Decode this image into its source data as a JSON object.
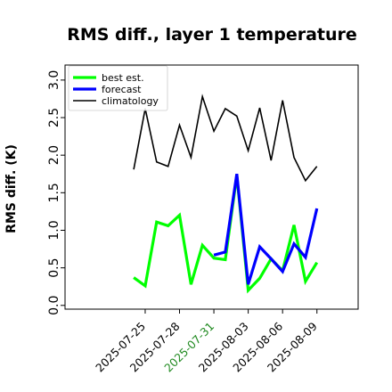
{
  "chart_data": {
    "type": "line",
    "title": "RMS diff., layer 1 temperature",
    "xlabel": "",
    "ylabel": "RMS diff. (K)",
    "ylim": [
      -0.05,
      3.2
    ],
    "yticks": [
      "0.0",
      "0.5",
      "1.0",
      "1.5",
      "2.0",
      "2.5",
      "3.0"
    ],
    "ytick_values": [
      0.0,
      0.5,
      1.0,
      1.5,
      2.0,
      2.5,
      3.0
    ],
    "xlim": [
      -7.0,
      18.6
    ],
    "xtick_labels": [
      "2025-07-25",
      "2025-07-28",
      "2025-07-31",
      "2025-08-03",
      "2025-08-06",
      "2025-08-09"
    ],
    "xtick_positions": [
      0,
      3,
      6,
      9,
      12,
      15
    ],
    "highlighted_tick": "2025-07-31",
    "highlight_color": "#228b22",
    "grid": false,
    "legend_position": "top-left",
    "series": [
      {
        "name": "best est.",
        "color": "#00ff00",
        "width": 3.2,
        "x": [
          -1,
          0,
          1,
          2,
          3,
          4,
          5,
          6,
          7,
          8,
          9,
          10,
          11,
          12,
          13,
          14,
          15
        ],
        "values": [
          0.37,
          0.26,
          1.11,
          1.06,
          1.2,
          0.28,
          0.8,
          0.63,
          0.61,
          1.73,
          0.2,
          0.36,
          0.62,
          0.46,
          1.07,
          0.32,
          0.57
        ]
      },
      {
        "name": "forecast",
        "color": "#0000ff",
        "width": 3.2,
        "x": [
          6,
          7,
          8,
          9,
          10,
          11,
          12,
          13,
          14,
          15
        ],
        "values": [
          0.67,
          0.71,
          1.75,
          0.28,
          0.78,
          0.62,
          0.45,
          0.82,
          0.64,
          1.29
        ]
      },
      {
        "name": "climatology",
        "color": "#000000",
        "width": 1.6,
        "x": [
          -1,
          0,
          1,
          2,
          3,
          4,
          5,
          6,
          7,
          8,
          9,
          10,
          11,
          12,
          13,
          14,
          15
        ],
        "values": [
          1.81,
          2.62,
          1.91,
          1.85,
          2.4,
          1.97,
          2.78,
          2.32,
          2.62,
          2.52,
          2.06,
          2.63,
          1.93,
          2.73,
          1.97,
          1.66,
          1.85
        ]
      }
    ]
  }
}
